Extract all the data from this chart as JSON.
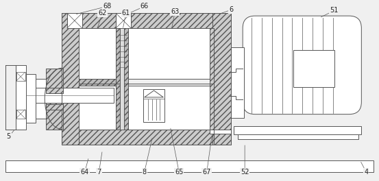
{
  "bg": "#f0f0f0",
  "lc": "#555555",
  "hc": "#aaaaaa",
  "figsize": [
    5.53,
    2.64
  ],
  "dpi": 100
}
